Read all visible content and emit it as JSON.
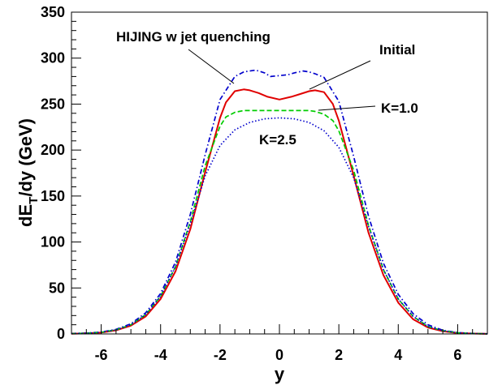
{
  "chart_data": {
    "type": "line",
    "title": "",
    "xlabel": "y",
    "ylabel_main": "dE",
    "ylabel_sub": "T",
    "ylabel_rest": "/dy (GeV)",
    "xlim": [
      -7,
      7
    ],
    "ylim": [
      0,
      350
    ],
    "xticks": [
      "-6",
      "-4",
      "-2",
      "0",
      "2",
      "4",
      "6"
    ],
    "yticks": [
      "0",
      "50",
      "100",
      "150",
      "200",
      "250",
      "300",
      "350"
    ],
    "grid": false,
    "legend": "none",
    "annotations": [
      {
        "text": "HIJING w jet quenching",
        "series": 0
      },
      {
        "text": "Initial",
        "series": 1
      },
      {
        "text": "K=1.0",
        "series": 2
      },
      {
        "text": "K=2.5",
        "series": 3
      }
    ],
    "series": [
      {
        "color": "#0000cc",
        "style": "dashdot",
        "x": [
          -7,
          -6.5,
          -6,
          -5.5,
          -5,
          -4.5,
          -4,
          -3.5,
          -3,
          -2.5,
          -2,
          -1.5,
          -1.2,
          -1,
          -0.8,
          -0.5,
          -0.3,
          0,
          0.3,
          0.5,
          0.8,
          1,
          1.2,
          1.5,
          2,
          2.5,
          3,
          3.5,
          4,
          4.5,
          5,
          5.5,
          6,
          6.5,
          7
        ],
        "values": [
          0.5,
          1,
          2,
          5,
          11,
          23,
          44,
          78,
          130,
          195,
          255,
          280,
          285,
          286,
          287,
          284,
          280,
          281,
          282,
          284,
          286,
          285,
          283,
          279,
          253,
          193,
          128,
          77,
          43,
          22,
          10,
          4,
          1.5,
          0.5,
          0.2
        ]
      },
      {
        "color": "#e00000",
        "style": "solid",
        "x": [
          -7,
          -6.5,
          -6,
          -5.5,
          -5,
          -4.5,
          -4,
          -3.5,
          -3,
          -2.5,
          -2,
          -1.8,
          -1.5,
          -1.2,
          -1,
          -0.7,
          -0.4,
          0,
          0.4,
          0.7,
          1,
          1.2,
          1.5,
          1.8,
          2,
          2.5,
          3,
          3.5,
          4,
          4.5,
          5,
          5.5,
          6,
          6.5,
          7
        ],
        "values": [
          0.3,
          0.7,
          1.5,
          4,
          9,
          19,
          38,
          68,
          114,
          176,
          235,
          252,
          264,
          266,
          265,
          262,
          258,
          255,
          258,
          261,
          264,
          265,
          263,
          250,
          232,
          172,
          110,
          64,
          34,
          16,
          7,
          3,
          1,
          0.4,
          0.1
        ]
      },
      {
        "color": "#00cc00",
        "style": "dashed",
        "x": [
          -7,
          -6.5,
          -6,
          -5.5,
          -5,
          -4.5,
          -4,
          -3.5,
          -3,
          -2.5,
          -2,
          -1.8,
          -1.5,
          -1.2,
          -1,
          -0.5,
          0,
          0.5,
          1,
          1.2,
          1.5,
          1.8,
          2,
          2.5,
          3,
          3.5,
          4,
          4.5,
          5,
          5.5,
          6,
          6.5,
          7
        ],
        "values": [
          0.3,
          0.8,
          1.8,
          4.5,
          10,
          21,
          41,
          73,
          122,
          183,
          226,
          236,
          241,
          243,
          243,
          243,
          243,
          243,
          243,
          242,
          239,
          232,
          221,
          178,
          118,
          70,
          38,
          19,
          8,
          3.5,
          1.2,
          0.4,
          0.1
        ]
      },
      {
        "color": "#0000cc",
        "style": "dotted",
        "x": [
          -7,
          -6.5,
          -6,
          -5.5,
          -5,
          -4.5,
          -4,
          -3.5,
          -3,
          -2.5,
          -2,
          -1.5,
          -1,
          -0.5,
          0,
          0.5,
          1,
          1.5,
          2,
          2.5,
          3,
          3.5,
          4,
          4.5,
          5,
          5.5,
          6,
          6.5,
          7
        ],
        "values": [
          0.3,
          0.8,
          1.8,
          4.5,
          10,
          21,
          41,
          73,
          120,
          172,
          205,
          222,
          230,
          234,
          235,
          234,
          230,
          221,
          203,
          170,
          117,
          70,
          38,
          19,
          8,
          3.5,
          1.2,
          0.4,
          0.1
        ]
      }
    ]
  }
}
